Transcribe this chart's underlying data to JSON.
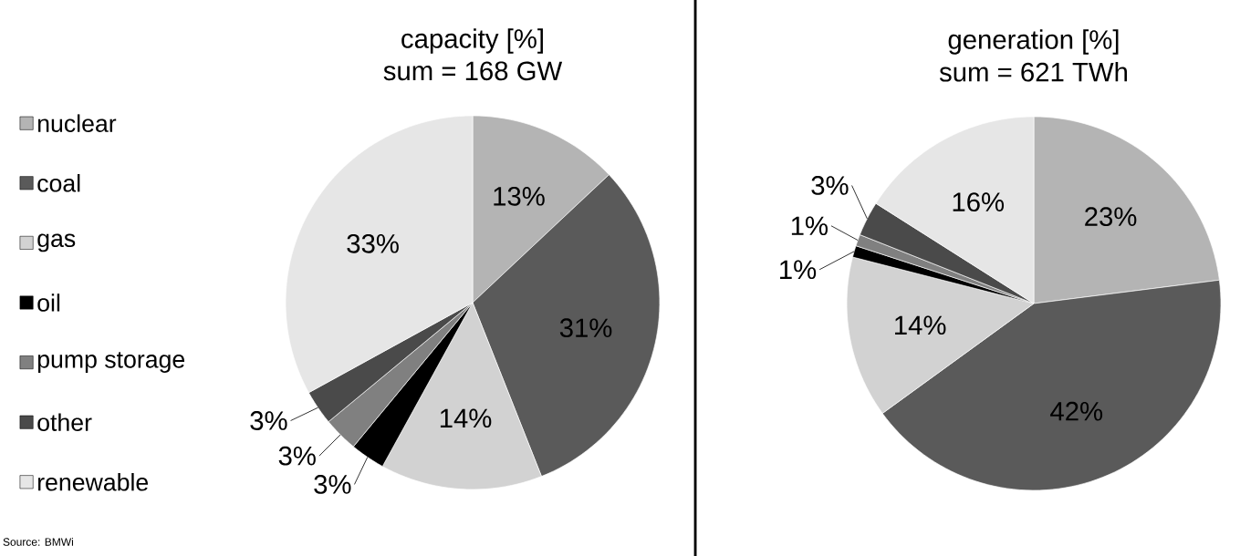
{
  "chart_data": [
    {
      "type": "pie",
      "title": "capacity [%]",
      "subtitle": "sum = 168 GW",
      "categories": [
        "nuclear",
        "coal",
        "gas",
        "oil",
        "pump storage",
        "other",
        "renewable"
      ],
      "values": [
        13,
        31,
        14,
        3,
        3,
        3,
        33
      ],
      "value_labels": [
        "13%",
        "31%",
        "14%",
        "3%",
        "3%",
        "3%",
        "33%"
      ],
      "colors": [
        "#b4b4b4",
        "#5a5a5a",
        "#d2d2d2",
        "#000000",
        "#808080",
        "#4a4a4a",
        "#e6e6e6"
      ],
      "legend": "left",
      "annotations": [
        "Source: BMWi"
      ]
    },
    {
      "type": "pie",
      "title": "generation [%]",
      "subtitle": "sum = 621 TWh",
      "categories": [
        null,
        null,
        null,
        null,
        null,
        null,
        null
      ],
      "values": [
        23,
        42,
        14,
        1,
        1,
        3,
        16
      ],
      "value_labels": [
        "23%",
        "42%",
        "14%",
        "1%",
        "1%",
        "3%",
        "16%"
      ],
      "colors": [
        "#b4b4b4",
        "#5a5a5a",
        "#d2d2d2",
        "#000000",
        "#808080",
        "#4a4a4a",
        "#e6e6e6"
      ]
    }
  ]
}
